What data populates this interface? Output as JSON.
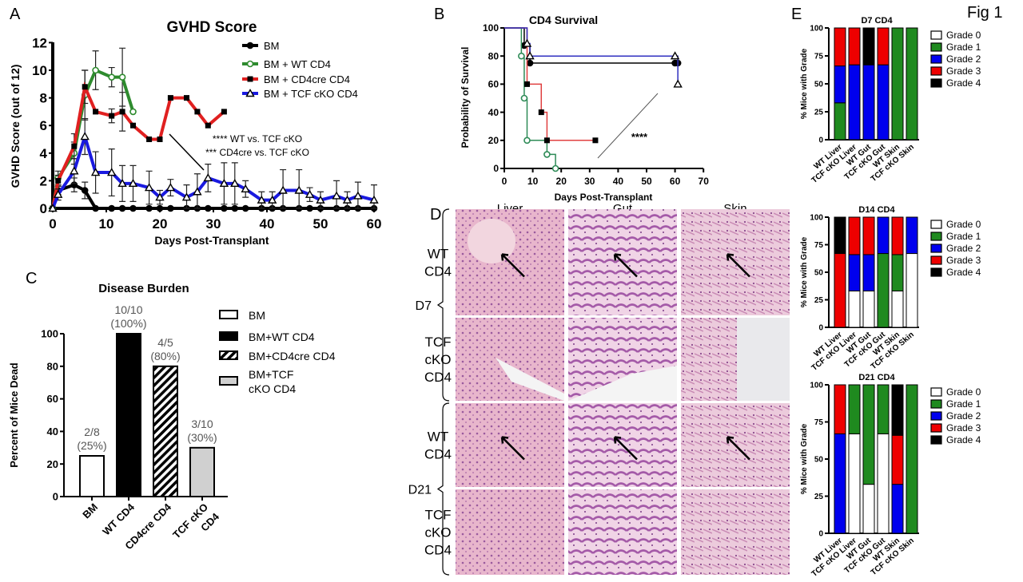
{
  "figure_label": "Fig 1",
  "panel_letters": {
    "a": "A",
    "b": "B",
    "c": "C",
    "d": "D",
    "e": "E"
  },
  "chart_data": [
    {
      "panel": "A",
      "type": "line",
      "title": "GVHD Score",
      "xlabel": "Days Post-Transplant",
      "ylabel": "GVHD Score (out of 12)",
      "xlim": [
        0,
        60
      ],
      "ylim": [
        0,
        12
      ],
      "xticks": [
        0,
        10,
        20,
        30,
        40,
        50,
        60
      ],
      "yticks": [
        0,
        2,
        4,
        6,
        8,
        10,
        12
      ],
      "legend_position": "top-right",
      "annotations": [
        "**** WT vs. TCF cKO",
        "*** CD4cre vs. TCF cKO"
      ],
      "series": [
        {
          "name": "BM",
          "color": "#000000",
          "marker": "circle-filled",
          "x": [
            0,
            1,
            4,
            6,
            8,
            11,
            13,
            15,
            18,
            20,
            22,
            25,
            27,
            29,
            32,
            34,
            36,
            39,
            41,
            43,
            46,
            48,
            50,
            53,
            55,
            57,
            60
          ],
          "y": [
            0,
            1.3,
            1.7,
            1.3,
            0,
            0,
            0,
            0,
            0,
            0,
            0,
            0,
            0,
            0,
            0,
            0,
            0,
            0,
            0,
            0,
            0,
            0,
            0,
            0,
            0,
            0,
            0
          ],
          "err": [
            0,
            0.3,
            0.5,
            0.6,
            0,
            0,
            0,
            0,
            0,
            0,
            0,
            0,
            0,
            0,
            0,
            0,
            0,
            0,
            0,
            0,
            0,
            0,
            0,
            0,
            0,
            0,
            0
          ]
        },
        {
          "name": "BM + WT CD4",
          "color": "#2e8b2e",
          "marker": "circle-open",
          "x": [
            0,
            1,
            4,
            6,
            8,
            11,
            13,
            15
          ],
          "y": [
            0,
            2.2,
            4,
            8.2,
            10,
            9.5,
            9.5,
            7
          ],
          "err": [
            0,
            0.5,
            0.8,
            1.8,
            1.4,
            0.7,
            2.1,
            0
          ]
        },
        {
          "name": "BM + CD4cre CD4",
          "color": "#e02020",
          "marker": "square-filled",
          "x": [
            0,
            1,
            4,
            6,
            8,
            11,
            13,
            15,
            18,
            20,
            22,
            25,
            27,
            29,
            32
          ],
          "y": [
            0,
            2,
            4.5,
            8.8,
            7,
            6.7,
            7,
            6,
            5,
            5,
            8,
            8,
            7,
            6,
            7
          ],
          "err": [
            0,
            0.4,
            0.9,
            1.2,
            0,
            0.5,
            1.4,
            0,
            0,
            0,
            0,
            0,
            0,
            0,
            0
          ]
        },
        {
          "name": "BM + TCF cKO CD4",
          "color": "#1a1ae0",
          "marker": "triangle-open",
          "x": [
            0,
            1,
            4,
            6,
            8,
            11,
            13,
            15,
            18,
            20,
            22,
            25,
            27,
            29,
            32,
            34,
            36,
            39,
            41,
            43,
            46,
            48,
            50,
            53,
            55,
            57,
            60
          ],
          "y": [
            0,
            1,
            2.7,
            5.2,
            2.6,
            2.6,
            1.8,
            1.8,
            1.5,
            0.8,
            1.5,
            0.8,
            1.2,
            2.2,
            1.8,
            1.8,
            1.4,
            0.6,
            0.6,
            1.3,
            1.3,
            1,
            0.6,
            0.9,
            0.6,
            0.9,
            0.6
          ],
          "err": [
            0,
            0.4,
            0.9,
            1.3,
            1.5,
            1.7,
            1.3,
            1.3,
            1.2,
            0.5,
            0.6,
            0.9,
            1.3,
            1,
            1.5,
            1.5,
            0.6,
            0.6,
            0.6,
            1.5,
            1.5,
            0.5,
            0.6,
            1.1,
            0.6,
            1,
            1.1
          ]
        }
      ]
    },
    {
      "panel": "B",
      "type": "line",
      "title": "CD4 Survival",
      "xlabel": "Days Post-Transplant",
      "ylabel": "Probability of Survival",
      "xlim": [
        0,
        70
      ],
      "ylim": [
        0,
        100
      ],
      "xticks": [
        0,
        10,
        20,
        30,
        40,
        50,
        60,
        70
      ],
      "yticks": [
        0,
        20,
        40,
        60,
        80,
        100
      ],
      "annotations": [
        "****"
      ],
      "series": [
        {
          "color": "#000000",
          "marker": "circle-filled",
          "steps": [
            [
              0,
              100
            ],
            [
              7,
              87.5
            ],
            [
              9,
              75
            ],
            [
              61,
              75
            ]
          ],
          "marks": [
            [
              7,
              87.5
            ],
            [
              9,
              75
            ],
            [
              60,
              75
            ],
            [
              61,
              75
            ]
          ]
        },
        {
          "color": "#2e8b57",
          "marker": "circle-open",
          "steps": [
            [
              0,
              100
            ],
            [
              6,
              80
            ],
            [
              7,
              50
            ],
            [
              8,
              20
            ],
            [
              15,
              10
            ],
            [
              18,
              0
            ]
          ],
          "marks": [
            [
              6,
              80
            ],
            [
              7,
              50
            ],
            [
              8,
              20
            ],
            [
              15,
              10
            ],
            [
              18,
              0
            ]
          ]
        },
        {
          "color": "#e04040",
          "marker": "square-filled",
          "steps": [
            [
              0,
              100
            ],
            [
              8,
              60
            ],
            [
              13,
              40
            ],
            [
              15,
              20
            ],
            [
              32,
              20
            ]
          ],
          "marks": [
            [
              8,
              60
            ],
            [
              13,
              40
            ],
            [
              15,
              20
            ],
            [
              32,
              20
            ]
          ]
        },
        {
          "color": "#3030c0",
          "marker": "triangle-open",
          "steps": [
            [
              0,
              100
            ],
            [
              8,
              88.9
            ],
            [
              9,
              80
            ],
            [
              61,
              60
            ]
          ],
          "marks": [
            [
              8,
              88.9
            ],
            [
              9,
              80
            ],
            [
              60,
              80
            ],
            [
              61,
              60
            ]
          ]
        }
      ]
    },
    {
      "panel": "C",
      "type": "bar",
      "title": "Disease Burden",
      "ylabel": "Percent of Mice Dead",
      "ylim": [
        0,
        100
      ],
      "yticks": [
        0,
        20,
        40,
        60,
        80,
        100
      ],
      "categories": [
        "BM",
        "WT CD4",
        "CD4cre CD4",
        "TCF cKO CD4"
      ],
      "category_lines": [
        [
          "BM"
        ],
        [
          "WT CD4"
        ],
        [
          "CD4cre CD4"
        ],
        [
          "TCF cKO",
          "CD4"
        ]
      ],
      "values": [
        25,
        100,
        80,
        30
      ],
      "data_labels": [
        [
          "2/8",
          "(25%)"
        ],
        [
          "10/10",
          "(100%)"
        ],
        [
          "4/5",
          "(80%)"
        ],
        [
          "3/10",
          "(30%)"
        ]
      ],
      "fills": [
        "white",
        "black",
        "hatched",
        "#d0d0d0"
      ],
      "legend_position": "right",
      "legend": [
        [
          "BM"
        ],
        [
          "BM+WT CD4"
        ],
        [
          "BM+CD4cre CD4"
        ],
        [
          "BM+TCF",
          "cKO CD4"
        ]
      ]
    },
    {
      "panel": "E",
      "type": "bar",
      "stacked": true,
      "ylabel": "% Mice with Grade",
      "ylim": [
        0,
        100
      ],
      "yticks": [
        0,
        25,
        50,
        75,
        100
      ],
      "categories": [
        "WT Liver",
        "TCF cKO Liver",
        "WT Gut",
        "TCF cKO Gut",
        "WT Skin",
        "TCF cKO Skin"
      ],
      "grades": [
        "Grade 0",
        "Grade 1",
        "Grade 2",
        "Grade 3",
        "Grade 4"
      ],
      "grade_colors": [
        "#ffffff",
        "#1f8a1f",
        "#0000ee",
        "#ee0000",
        "#000000"
      ],
      "legend_position": "right",
      "charts": [
        {
          "title": "D7 CD4",
          "values": [
            [
              0,
              33,
              33,
              34,
              0
            ],
            [
              0,
              0,
              67,
              33,
              0
            ],
            [
              0,
              0,
              67,
              0,
              33
            ],
            [
              0,
              0,
              67,
              33,
              0
            ],
            [
              0,
              100,
              0,
              0,
              0
            ],
            [
              0,
              100,
              0,
              0,
              0
            ]
          ]
        },
        {
          "title": "D14 CD4",
          "values": [
            [
              0,
              0,
              0,
              67,
              33
            ],
            [
              33,
              0,
              33,
              34,
              0
            ],
            [
              33,
              0,
              33,
              34,
              0
            ],
            [
              0,
              67,
              33,
              0,
              0
            ],
            [
              33,
              33,
              0,
              34,
              0
            ],
            [
              67,
              0,
              33,
              0,
              0
            ]
          ]
        },
        {
          "title": "D21 CD4",
          "values": [
            [
              0,
              0,
              67,
              33,
              0
            ],
            [
              67,
              33,
              0,
              0,
              0
            ],
            [
              33,
              67,
              0,
              0,
              0
            ],
            [
              67,
              33,
              0,
              0,
              0
            ],
            [
              0,
              0,
              33,
              33,
              34
            ],
            [
              0,
              100,
              0,
              0,
              0
            ]
          ]
        }
      ]
    }
  ],
  "histology": {
    "columns": [
      "Liver",
      "Gut",
      "Skin"
    ],
    "timepoints": [
      "D7",
      "D21"
    ],
    "row_labels": [
      [
        "WT",
        "CD4"
      ],
      [
        "TCF",
        "cKO",
        "CD4"
      ],
      [
        "WT",
        "CD4"
      ],
      [
        "TCF",
        "cKO",
        "CD4"
      ]
    ],
    "arrows_in_rows": [
      0,
      2
    ]
  }
}
